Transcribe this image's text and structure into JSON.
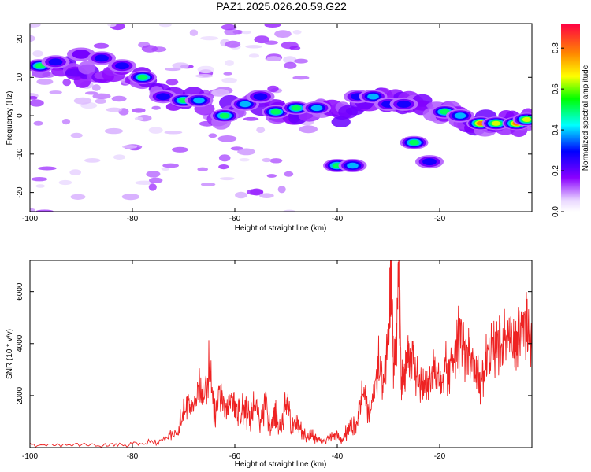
{
  "title": "PAZ1.2025.026.20.59.G22",
  "chart_data": [
    {
      "type": "heatmap",
      "name": "spectrogram",
      "xlabel": "Height of straight line (km)",
      "ylabel": "Frequency (Hz)",
      "xlim": [
        -100,
        -2
      ],
      "ylim": [
        -25,
        24
      ],
      "xticks": [
        -100,
        -80,
        -60,
        -40,
        -20
      ],
      "yticks": [
        -20,
        -10,
        0,
        10,
        20
      ],
      "colorbar": {
        "label": "Normalized spectral amplitude",
        "range": [
          0.0,
          0.92
        ],
        "ticks": [
          0.0,
          0.2,
          0.4,
          0.6,
          0.8
        ]
      },
      "ridge": [
        [
          -98,
          13
        ],
        [
          -94,
          12
        ],
        [
          -90,
          11
        ],
        [
          -86,
          12
        ],
        [
          -82,
          12
        ],
        [
          -79,
          10
        ],
        [
          -75,
          6
        ],
        [
          -71,
          4
        ],
        [
          -67,
          4
        ],
        [
          -63,
          0
        ],
        [
          -60,
          2
        ],
        [
          -56,
          3
        ],
        [
          -52,
          1
        ],
        [
          -48,
          1
        ],
        [
          -44,
          2
        ],
        [
          -40,
          0
        ],
        [
          -36,
          3
        ],
        [
          -33,
          5
        ],
        [
          -30,
          4
        ],
        [
          -27,
          3
        ],
        [
          -24,
          2
        ],
        [
          -20,
          1
        ],
        [
          -17,
          0
        ],
        [
          -14,
          -2
        ],
        [
          -10,
          -2
        ],
        [
          -6,
          -2
        ],
        [
          -2,
          -1
        ]
      ],
      "blobs": [
        {
          "x": -98,
          "y": 13,
          "amp": 0.55
        },
        {
          "x": -95,
          "y": 14,
          "amp": 0.3
        },
        {
          "x": -90,
          "y": 16,
          "amp": 0.25
        },
        {
          "x": -86,
          "y": 15,
          "amp": 0.3
        },
        {
          "x": -82,
          "y": 13,
          "amp": 0.3
        },
        {
          "x": -78,
          "y": 10,
          "amp": 0.6
        },
        {
          "x": -74,
          "y": 5,
          "amp": 0.4
        },
        {
          "x": -70,
          "y": 4,
          "amp": 0.55
        },
        {
          "x": -67,
          "y": 4,
          "amp": 0.5
        },
        {
          "x": -62,
          "y": 0,
          "amp": 0.55
        },
        {
          "x": -58,
          "y": 3,
          "amp": 0.45
        },
        {
          "x": -55,
          "y": 5,
          "amp": 0.4
        },
        {
          "x": -52,
          "y": 1,
          "amp": 0.65
        },
        {
          "x": -48,
          "y": 2,
          "amp": 0.6
        },
        {
          "x": -44,
          "y": 2,
          "amp": 0.45
        },
        {
          "x": -40,
          "y": -13,
          "amp": 0.55
        },
        {
          "x": -37,
          "y": -13,
          "amp": 0.45
        },
        {
          "x": -36,
          "y": 5,
          "amp": 0.4
        },
        {
          "x": -33,
          "y": 5,
          "amp": 0.5
        },
        {
          "x": -30,
          "y": 3,
          "amp": 0.4
        },
        {
          "x": -27,
          "y": 3,
          "amp": 0.35
        },
        {
          "x": -25,
          "y": -7,
          "amp": 0.55
        },
        {
          "x": -22,
          "y": -12,
          "amp": 0.3
        },
        {
          "x": -19,
          "y": 1,
          "amp": 0.6
        },
        {
          "x": -16,
          "y": 0,
          "amp": 0.45
        },
        {
          "x": -12,
          "y": -2,
          "amp": 0.85
        },
        {
          "x": -9,
          "y": -2,
          "amp": 0.8
        },
        {
          "x": -5,
          "y": -2,
          "amp": 0.9
        },
        {
          "x": -3,
          "y": -1,
          "amp": 0.7
        }
      ]
    },
    {
      "type": "line",
      "name": "snr",
      "xlabel": "Height of straight line (km)",
      "ylabel": "SNR (10 * v/v)",
      "xlim": [
        -100,
        -2
      ],
      "ylim": [
        0,
        7200
      ],
      "xticks": [
        -100,
        -80,
        -60,
        -40,
        -20
      ],
      "yticks": [
        2000,
        4000,
        6000
      ],
      "color": "#ee2222",
      "x": [
        -100,
        -95,
        -90,
        -85,
        -80,
        -76,
        -73,
        -71,
        -70,
        -69,
        -68,
        -67,
        -66,
        -65,
        -64,
        -63,
        -62,
        -61,
        -60,
        -59,
        -58,
        -57,
        -56,
        -55,
        -54,
        -53,
        -52,
        -51,
        -50,
        -49,
        -48,
        -47,
        -46,
        -45,
        -44,
        -43,
        -42,
        -41,
        -40,
        -39,
        -38,
        -37,
        -36,
        -35,
        -34,
        -33,
        -32,
        -31,
        -30,
        -29.5,
        -29,
        -28.5,
        -28,
        -27.5,
        -27,
        -26.5,
        -26,
        -25,
        -24,
        -23,
        -22,
        -21,
        -20,
        -19,
        -18,
        -17,
        -16,
        -15,
        -14,
        -13,
        -12,
        -11,
        -10,
        -9,
        -8,
        -7,
        -6,
        -5,
        -4,
        -3,
        -2
      ],
      "y": [
        120,
        90,
        110,
        100,
        130,
        200,
        350,
        700,
        1500,
        1700,
        1600,
        2400,
        1800,
        3200,
        1200,
        2200,
        1500,
        1600,
        1800,
        1200,
        1600,
        1000,
        1700,
        900,
        1800,
        800,
        1400,
        700,
        1900,
        900,
        1000,
        700,
        400,
        500,
        300,
        250,
        300,
        400,
        450,
        300,
        700,
        900,
        1100,
        2200,
        1400,
        1800,
        3300,
        2500,
        4200,
        6900,
        3100,
        3800,
        7100,
        2700,
        2600,
        3400,
        3500,
        3100,
        2500,
        2200,
        2500,
        2900,
        2500,
        3200,
        2800,
        3500,
        4400,
        3400,
        3600,
        3200,
        2300,
        3400,
        3800,
        4200,
        3700,
        4100,
        4300,
        4000,
        4200,
        4800,
        3600
      ]
    }
  ]
}
